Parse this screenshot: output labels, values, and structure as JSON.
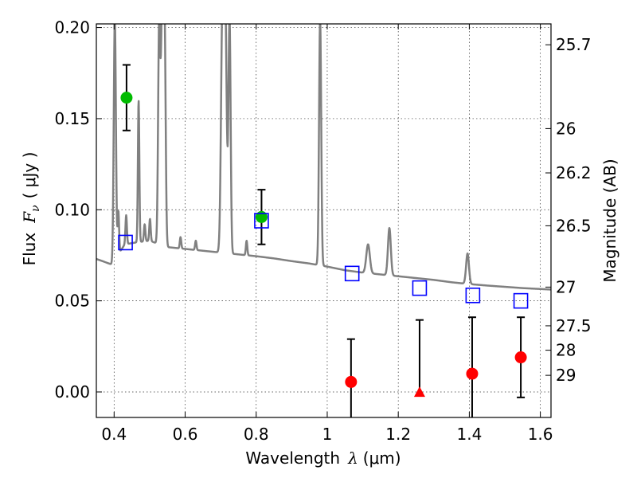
{
  "chart_data": {
    "type": "scatter",
    "xlabel_prefix": "Wavelength",
    "xlabel_symbol": "λ",
    "xlabel_unit": "(μm)",
    "ylabel_prefix": "Flux",
    "ylabel_symbol": "F",
    "ylabel_subscript": "ν",
    "ylabel_unit": "( μJy )",
    "y2label": "Magnitude (AB)",
    "xlim": [
      0.35,
      1.63
    ],
    "ylim": [
      -0.014,
      0.202
    ],
    "x_ticks": [
      0.4,
      0.6,
      0.8,
      1.0,
      1.2,
      1.4,
      1.6
    ],
    "x_tick_labels": [
      "0.4",
      "0.6",
      "0.8",
      "1",
      "1.2",
      "1.4",
      "1.6"
    ],
    "y_ticks": [
      0.0,
      0.05,
      0.1,
      0.15,
      0.2
    ],
    "y_tick_labels": [
      "0.00",
      "0.05",
      "0.10",
      "0.15",
      "0.20"
    ],
    "mag_ticks": [
      25.7,
      26,
      26.2,
      26.5,
      27,
      27.5,
      28,
      29
    ],
    "mag_tick_labels": [
      "25.7",
      "26",
      "26.2",
      "26.5",
      "27",
      "27.5",
      "28",
      "29"
    ],
    "grid": true,
    "model_spectrum": {
      "name": "model SED",
      "color": "#808080",
      "continuum": [
        [
          0.35,
          0.073
        ],
        [
          0.4,
          0.0695
        ],
        [
          0.41,
          0.075
        ],
        [
          0.43,
          0.081
        ],
        [
          0.46,
          0.082
        ],
        [
          0.5,
          0.083
        ],
        [
          0.55,
          0.0795
        ],
        [
          0.6,
          0.0785
        ],
        [
          0.65,
          0.0775
        ],
        [
          0.7,
          0.0765
        ],
        [
          0.75,
          0.0755
        ],
        [
          0.8,
          0.0745
        ],
        [
          0.85,
          0.0733
        ],
        [
          0.9,
          0.0718
        ],
        [
          0.95,
          0.0705
        ],
        [
          1.0,
          0.0688
        ],
        [
          1.05,
          0.0668
        ],
        [
          1.1,
          0.0655
        ],
        [
          1.15,
          0.0645
        ],
        [
          1.2,
          0.0635
        ],
        [
          1.25,
          0.0625
        ],
        [
          1.3,
          0.0615
        ],
        [
          1.35,
          0.0602
        ],
        [
          1.4,
          0.0592
        ],
        [
          1.45,
          0.0584
        ],
        [
          1.5,
          0.0577
        ],
        [
          1.55,
          0.057
        ],
        [
          1.6,
          0.0565
        ],
        [
          1.63,
          0.0562
        ]
      ],
      "emission_lines": [
        {
          "center": 0.402,
          "peak": 0.205,
          "width": 0.003
        },
        {
          "center": 0.412,
          "peak": 0.099,
          "width": 0.002
        },
        {
          "center": 0.434,
          "peak": 0.097,
          "width": 0.002
        },
        {
          "center": 0.469,
          "peak": 0.16,
          "width": 0.002
        },
        {
          "center": 0.486,
          "peak": 0.092,
          "width": 0.002
        },
        {
          "center": 0.501,
          "peak": 0.095,
          "width": 0.002
        },
        {
          "center": 0.527,
          "peak": 0.205,
          "width": 0.003
        },
        {
          "center": 0.535,
          "peak": 0.205,
          "width": 0.003
        },
        {
          "center": 0.542,
          "peak": 0.205,
          "width": 0.003
        },
        {
          "center": 0.587,
          "peak": 0.085,
          "width": 0.002
        },
        {
          "center": 0.63,
          "peak": 0.083,
          "width": 0.002
        },
        {
          "center": 0.705,
          "peak": 0.205,
          "width": 0.004
        },
        {
          "center": 0.713,
          "peak": 0.205,
          "width": 0.004
        },
        {
          "center": 0.725,
          "peak": 0.205,
          "width": 0.003
        },
        {
          "center": 0.773,
          "peak": 0.083,
          "width": 0.002
        },
        {
          "center": 0.98,
          "peak": 0.205,
          "width": 0.003
        },
        {
          "center": 1.115,
          "peak": 0.081,
          "width": 0.005
        },
        {
          "center": 1.175,
          "peak": 0.09,
          "width": 0.004
        },
        {
          "center": 1.395,
          "peak": 0.076,
          "width": 0.004
        }
      ]
    },
    "series": [
      {
        "name": "green detections",
        "marker": "circle",
        "color": "#00bb00",
        "points": [
          {
            "x": 0.435,
            "y": 0.1615,
            "err_lo": 0.018,
            "err_hi": 0.018
          },
          {
            "x": 0.815,
            "y": 0.096,
            "err_lo": 0.015,
            "err_hi": 0.015
          }
        ]
      },
      {
        "name": "model photometry",
        "marker": "square-open",
        "color": "#0000ff",
        "points": [
          {
            "x": 0.432,
            "y": 0.082
          },
          {
            "x": 0.815,
            "y": 0.094
          },
          {
            "x": 1.07,
            "y": 0.065
          },
          {
            "x": 1.26,
            "y": 0.057
          },
          {
            "x": 1.41,
            "y": 0.053
          },
          {
            "x": 1.545,
            "y": 0.05
          }
        ]
      },
      {
        "name": "red detections",
        "marker": "circle",
        "color": "#ff0000",
        "points": [
          {
            "x": 1.067,
            "y": 0.0055,
            "err_lo": 0.0235,
            "err_hi": 0.0235
          },
          {
            "x": 1.408,
            "y": 0.01,
            "err_lo": 0.031,
            "err_hi": 0.031
          },
          {
            "x": 1.545,
            "y": 0.019,
            "err_lo": 0.022,
            "err_hi": 0.022
          }
        ]
      },
      {
        "name": "red upper limit",
        "marker": "triangle",
        "color": "#ff0000",
        "points": [
          {
            "x": 1.26,
            "y": -0.0005,
            "err_lo": 0.0,
            "err_hi": 0.04
          }
        ]
      }
    ]
  }
}
